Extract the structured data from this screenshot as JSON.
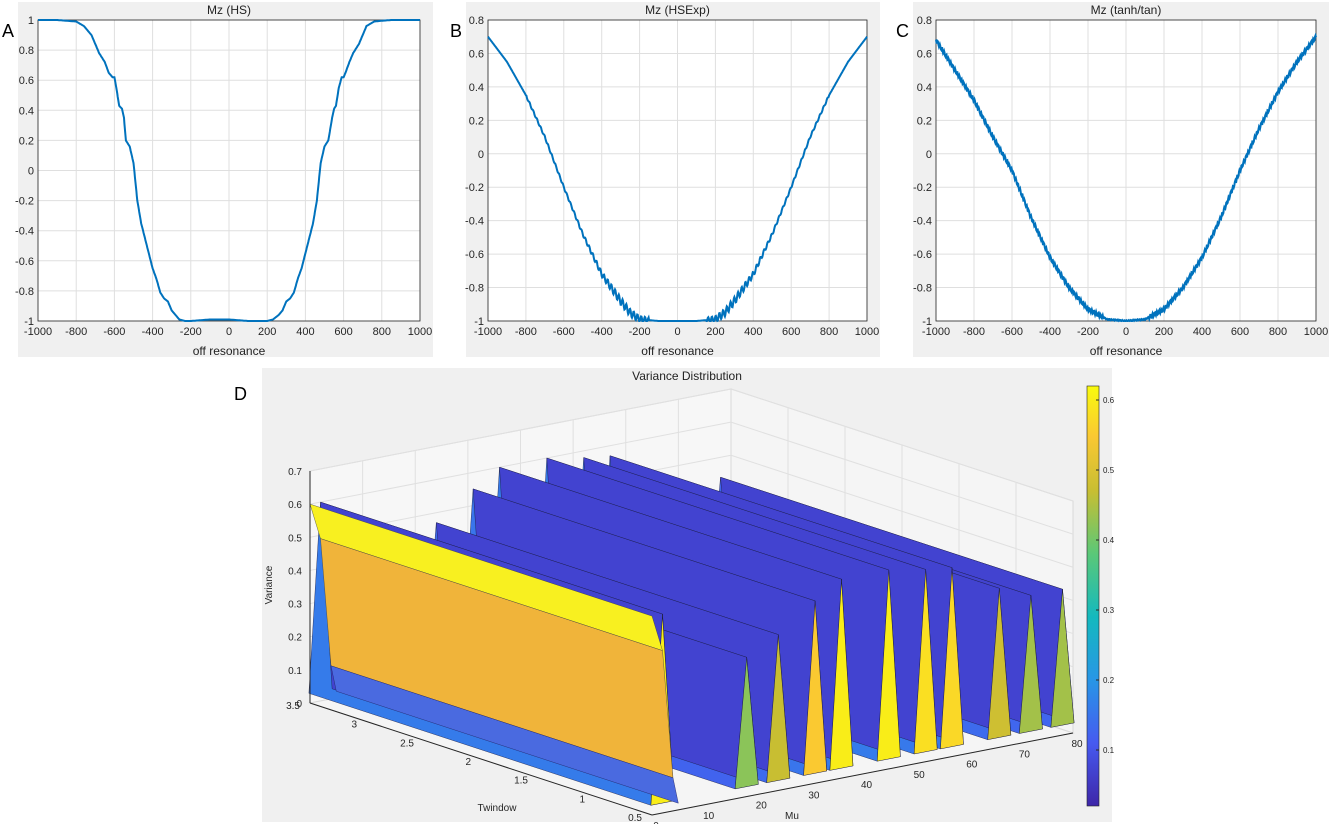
{
  "panels": [
    {
      "letter": "A",
      "title": "Mz (HS)",
      "xlabel": "off resonance"
    },
    {
      "letter": "B",
      "title": "Mz (HSExp)",
      "xlabel": "off resonance"
    },
    {
      "letter": "C",
      "title": "Mz (tanh/tan)",
      "xlabel": "off resonance"
    },
    {
      "letter": "D",
      "title": "Variance Distribution",
      "xlabel": "Mu",
      "ylabel": "Twindow",
      "zlabel": "Variance"
    }
  ],
  "chart_data": [
    {
      "type": "line",
      "title": "Mz (HS)",
      "xlabel": "off resonance",
      "ylabel": "",
      "xlim": [
        -1000,
        1000
      ],
      "ylim": [
        -1,
        1
      ],
      "xticks": [
        "-1000",
        "-800",
        "-600",
        "-400",
        "-200",
        "0",
        "200",
        "400",
        "600",
        "800",
        "1000"
      ],
      "yticks": [
        "1",
        "0.8",
        "0.6",
        "0.4",
        "0.2",
        "0",
        "-0.2",
        "-0.4",
        "-0.6",
        "-0.8",
        "-1"
      ],
      "grid": true,
      "color": "#0072BD",
      "x": [
        -1000,
        -900,
        -850,
        -800,
        -760,
        -720,
        -700,
        -680,
        -650,
        -630,
        -610,
        -600,
        -590,
        -575,
        -560,
        -550,
        -540,
        -520,
        -500,
        -480,
        -460,
        -440,
        -420,
        -400,
        -380,
        -360,
        -340,
        -320,
        -300,
        -280,
        -260,
        -230,
        -200,
        -100,
        0,
        100,
        200,
        230,
        260,
        280,
        300,
        320,
        340,
        360,
        380,
        400,
        420,
        440,
        460,
        480,
        500,
        520,
        540,
        550,
        560,
        575,
        590,
        600,
        610,
        630,
        650,
        680,
        700,
        720,
        760,
        800,
        850,
        900,
        1000
      ],
      "y": [
        1.0,
        1.0,
        0.995,
        0.99,
        0.96,
        0.9,
        0.84,
        0.78,
        0.72,
        0.65,
        0.62,
        0.62,
        0.55,
        0.43,
        0.41,
        0.35,
        0.2,
        0.16,
        0.05,
        -0.2,
        -0.35,
        -0.45,
        -0.55,
        -0.65,
        -0.72,
        -0.81,
        -0.85,
        -0.87,
        -0.93,
        -0.96,
        -0.99,
        -1.0,
        -1.0,
        -0.99,
        -0.99,
        -1.0,
        -1.0,
        -0.99,
        -0.96,
        -0.93,
        -0.87,
        -0.85,
        -0.81,
        -0.72,
        -0.65,
        -0.55,
        -0.45,
        -0.35,
        -0.2,
        0.05,
        0.16,
        0.2,
        0.35,
        0.41,
        0.43,
        0.55,
        0.62,
        0.62,
        0.65,
        0.72,
        0.78,
        0.84,
        0.9,
        0.96,
        0.99,
        0.995,
        1.0,
        1.0,
        1.0
      ]
    },
    {
      "type": "line",
      "title": "Mz (HSExp)",
      "xlabel": "off resonance",
      "ylabel": "",
      "xlim": [
        -1000,
        1000
      ],
      "ylim": [
        -1,
        0.8
      ],
      "xticks": [
        "-1000",
        "-800",
        "-600",
        "-400",
        "-200",
        "0",
        "200",
        "400",
        "600",
        "800",
        "1000"
      ],
      "yticks": [
        "0.8",
        "0.6",
        "0.4",
        "0.2",
        "0",
        "-0.2",
        "-0.4",
        "-0.6",
        "-0.8",
        "-1"
      ],
      "grid": true,
      "color": "#0072BD",
      "ripple": "dense small oscillations, strongest near -300..-200 and 200..300",
      "x": [
        -1000,
        -900,
        -800,
        -700,
        -600,
        -500,
        -400,
        -300,
        -250,
        -200,
        -100,
        0,
        100,
        200,
        250,
        300,
        400,
        500,
        600,
        700,
        800,
        900,
        1000
      ],
      "y": [
        0.7,
        0.55,
        0.35,
        0.1,
        -0.2,
        -0.48,
        -0.72,
        -0.88,
        -0.95,
        -0.99,
        -1.0,
        -1.0,
        -1.0,
        -0.99,
        -0.95,
        -0.88,
        -0.72,
        -0.48,
        -0.2,
        0.1,
        0.35,
        0.55,
        0.7
      ]
    },
    {
      "type": "line",
      "title": "Mz (tanh/tan)",
      "xlabel": "off resonance",
      "ylabel": "",
      "xlim": [
        -1000,
        1000
      ],
      "ylim": [
        -1,
        0.8
      ],
      "xticks": [
        "-1000",
        "-800",
        "-600",
        "-400",
        "-200",
        "0",
        "200",
        "400",
        "600",
        "800",
        "1000"
      ],
      "yticks": [
        "0.8",
        "0.6",
        "0.4",
        "0.2",
        "0",
        "-0.2",
        "-0.4",
        "-0.6",
        "-0.8",
        "-1"
      ],
      "grid": true,
      "color": "#0072BD",
      "ripple": "dense small oscillations along most of the curve",
      "x": [
        -1000,
        -900,
        -800,
        -700,
        -600,
        -500,
        -400,
        -300,
        -200,
        -100,
        0,
        100,
        200,
        300,
        400,
        500,
        600,
        700,
        800,
        900,
        1000
      ],
      "y": [
        0.68,
        0.5,
        0.32,
        0.1,
        -0.1,
        -0.38,
        -0.62,
        -0.8,
        -0.93,
        -0.99,
        -1.0,
        -0.99,
        -0.93,
        -0.8,
        -0.62,
        -0.38,
        -0.1,
        0.15,
        0.37,
        0.55,
        0.7
      ]
    },
    {
      "type": "surface",
      "title": "Variance Distribution",
      "xlabel": "Mu",
      "ylabel": "Twindow",
      "zlabel": "Variance",
      "xlim": [
        0,
        80
      ],
      "ylim": [
        0.5,
        3.5
      ],
      "zlim": [
        0,
        0.7
      ],
      "xticks": [
        "0",
        "10",
        "20",
        "30",
        "40",
        "50",
        "60",
        "70",
        "80"
      ],
      "yticks": [
        "0.5",
        "1",
        "1.5",
        "2",
        "2.5",
        "3",
        "3.5"
      ],
      "zticks": [
        "0",
        "0.1",
        "0.2",
        "0.3",
        "0.4",
        "0.5",
        "0.6",
        "0.7"
      ],
      "colormap": "parula",
      "colorbar_ticks": [
        "0.1",
        "0.2",
        "0.3",
        "0.4",
        "0.5",
        "0.6"
      ],
      "colorbar_range": [
        0.02,
        0.62
      ],
      "ridges": [
        {
          "mu": 2,
          "peak": 0.6
        },
        {
          "mu": 18,
          "peak": 0.42
        },
        {
          "mu": 24,
          "peak": 0.47
        },
        {
          "mu": 31,
          "peak": 0.55
        },
        {
          "mu": 36,
          "peak": 0.6
        },
        {
          "mu": 45,
          "peak": 0.6
        },
        {
          "mu": 52,
          "peak": 0.58
        },
        {
          "mu": 57,
          "peak": 0.57
        },
        {
          "mu": 66,
          "peak": 0.48
        },
        {
          "mu": 72,
          "peak": 0.44
        },
        {
          "mu": 78,
          "peak": 0.44
        }
      ]
    }
  ]
}
